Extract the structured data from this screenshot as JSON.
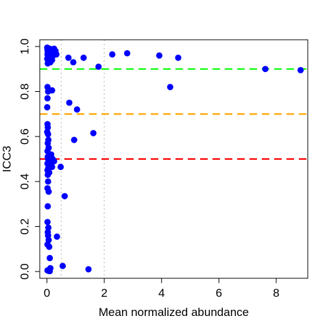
{
  "chart_data": {
    "type": "scatter",
    "title": "",
    "xlabel": "Mean normalized abundance",
    "ylabel": "ICC3",
    "xlim": [
      -0.25,
      9.1
    ],
    "ylim": [
      -0.03,
      1.03
    ],
    "xticks": [
      0,
      2,
      4,
      6,
      8
    ],
    "yticks": [
      0.0,
      0.2,
      0.4,
      0.6,
      0.8,
      1.0
    ],
    "xtick_labels": [
      "0",
      "2",
      "4",
      "6",
      "8"
    ],
    "ytick_labels": [
      "0.0",
      "0.2",
      "0.4",
      "0.6",
      "0.8",
      "1.0"
    ],
    "grid": false,
    "legend": "none",
    "point_color": "#0000ff",
    "hlines": [
      {
        "y": 0.9,
        "color": "#00ff00",
        "style": "dashed"
      },
      {
        "y": 0.7,
        "color": "#ffa500",
        "style": "dashed"
      },
      {
        "y": 0.5,
        "color": "#ff0000",
        "style": "dashed"
      }
    ],
    "vlines": [
      {
        "x": 0.5,
        "color": "#bebebe",
        "style": "dotted"
      },
      {
        "x": 2.0,
        "color": "#bebebe",
        "style": "dotted"
      }
    ],
    "points": [
      {
        "x": 0.01,
        "y": 0.995
      },
      {
        "x": 0.02,
        "y": 0.985
      },
      {
        "x": 0.03,
        "y": 0.975
      },
      {
        "x": 0.02,
        "y": 0.965
      },
      {
        "x": 0.04,
        "y": 0.955
      },
      {
        "x": 0.01,
        "y": 0.945
      },
      {
        "x": 0.05,
        "y": 0.935
      },
      {
        "x": 0.03,
        "y": 0.925
      },
      {
        "x": 0.1,
        "y": 0.99
      },
      {
        "x": 0.15,
        "y": 0.98
      },
      {
        "x": 0.18,
        "y": 0.94
      },
      {
        "x": 0.12,
        "y": 0.93
      },
      {
        "x": 0.25,
        "y": 0.99
      },
      {
        "x": 0.3,
        "y": 0.98
      },
      {
        "x": 0.33,
        "y": 0.965
      },
      {
        "x": 0.22,
        "y": 0.96
      },
      {
        "x": 0.75,
        "y": 0.95
      },
      {
        "x": 0.92,
        "y": 0.93
      },
      {
        "x": 1.28,
        "y": 0.95
      },
      {
        "x": 1.8,
        "y": 0.91
      },
      {
        "x": 2.28,
        "y": 0.965
      },
      {
        "x": 2.8,
        "y": 0.97
      },
      {
        "x": 3.92,
        "y": 0.96
      },
      {
        "x": 4.58,
        "y": 0.95
      },
      {
        "x": 7.62,
        "y": 0.9
      },
      {
        "x": 8.85,
        "y": 0.895
      },
      {
        "x": 4.3,
        "y": 0.82
      },
      {
        "x": 0.02,
        "y": 0.82
      },
      {
        "x": 0.04,
        "y": 0.8
      },
      {
        "x": 0.18,
        "y": 0.805
      },
      {
        "x": 0.02,
        "y": 0.77
      },
      {
        "x": 0.01,
        "y": 0.73
      },
      {
        "x": 0.78,
        "y": 0.75
      },
      {
        "x": 1.05,
        "y": 0.72
      },
      {
        "x": 0.02,
        "y": 0.655
      },
      {
        "x": 0.03,
        "y": 0.64
      },
      {
        "x": 0.01,
        "y": 0.62
      },
      {
        "x": 0.04,
        "y": 0.61
      },
      {
        "x": 1.62,
        "y": 0.615
      },
      {
        "x": 0.05,
        "y": 0.585
      },
      {
        "x": 0.03,
        "y": 0.57
      },
      {
        "x": 0.95,
        "y": 0.585
      },
      {
        "x": 0.06,
        "y": 0.55
      },
      {
        "x": 0.02,
        "y": 0.535
      },
      {
        "x": 0.03,
        "y": 0.51
      },
      {
        "x": 0.08,
        "y": 0.515
      },
      {
        "x": 0.15,
        "y": 0.52
      },
      {
        "x": 0.2,
        "y": 0.5
      },
      {
        "x": 0.04,
        "y": 0.5
      },
      {
        "x": 0.1,
        "y": 0.49
      },
      {
        "x": 0.25,
        "y": 0.49
      },
      {
        "x": 0.02,
        "y": 0.48
      },
      {
        "x": 0.12,
        "y": 0.475
      },
      {
        "x": 0.18,
        "y": 0.465
      },
      {
        "x": 0.05,
        "y": 0.46
      },
      {
        "x": 0.48,
        "y": 0.465
      },
      {
        "x": 0.02,
        "y": 0.45
      },
      {
        "x": 0.08,
        "y": 0.44
      },
      {
        "x": 0.03,
        "y": 0.43
      },
      {
        "x": 0.04,
        "y": 0.4
      },
      {
        "x": 0.02,
        "y": 0.37
      },
      {
        "x": 0.06,
        "y": 0.355
      },
      {
        "x": 0.62,
        "y": 0.335
      },
      {
        "x": 0.03,
        "y": 0.29
      },
      {
        "x": 0.02,
        "y": 0.22
      },
      {
        "x": 0.05,
        "y": 0.195
      },
      {
        "x": 0.03,
        "y": 0.175
      },
      {
        "x": 0.04,
        "y": 0.16
      },
      {
        "x": 0.06,
        "y": 0.14
      },
      {
        "x": 0.35,
        "y": 0.155
      },
      {
        "x": 0.02,
        "y": 0.12
      },
      {
        "x": 0.08,
        "y": 0.11
      },
      {
        "x": 0.1,
        "y": 0.06
      },
      {
        "x": 0.55,
        "y": 0.025
      },
      {
        "x": 0.12,
        "y": 0.015
      },
      {
        "x": 0.02,
        "y": 0.005
      },
      {
        "x": 0.06,
        "y": 0.003
      },
      {
        "x": 0.1,
        "y": 0.002
      },
      {
        "x": 1.45,
        "y": 0.01
      }
    ]
  }
}
